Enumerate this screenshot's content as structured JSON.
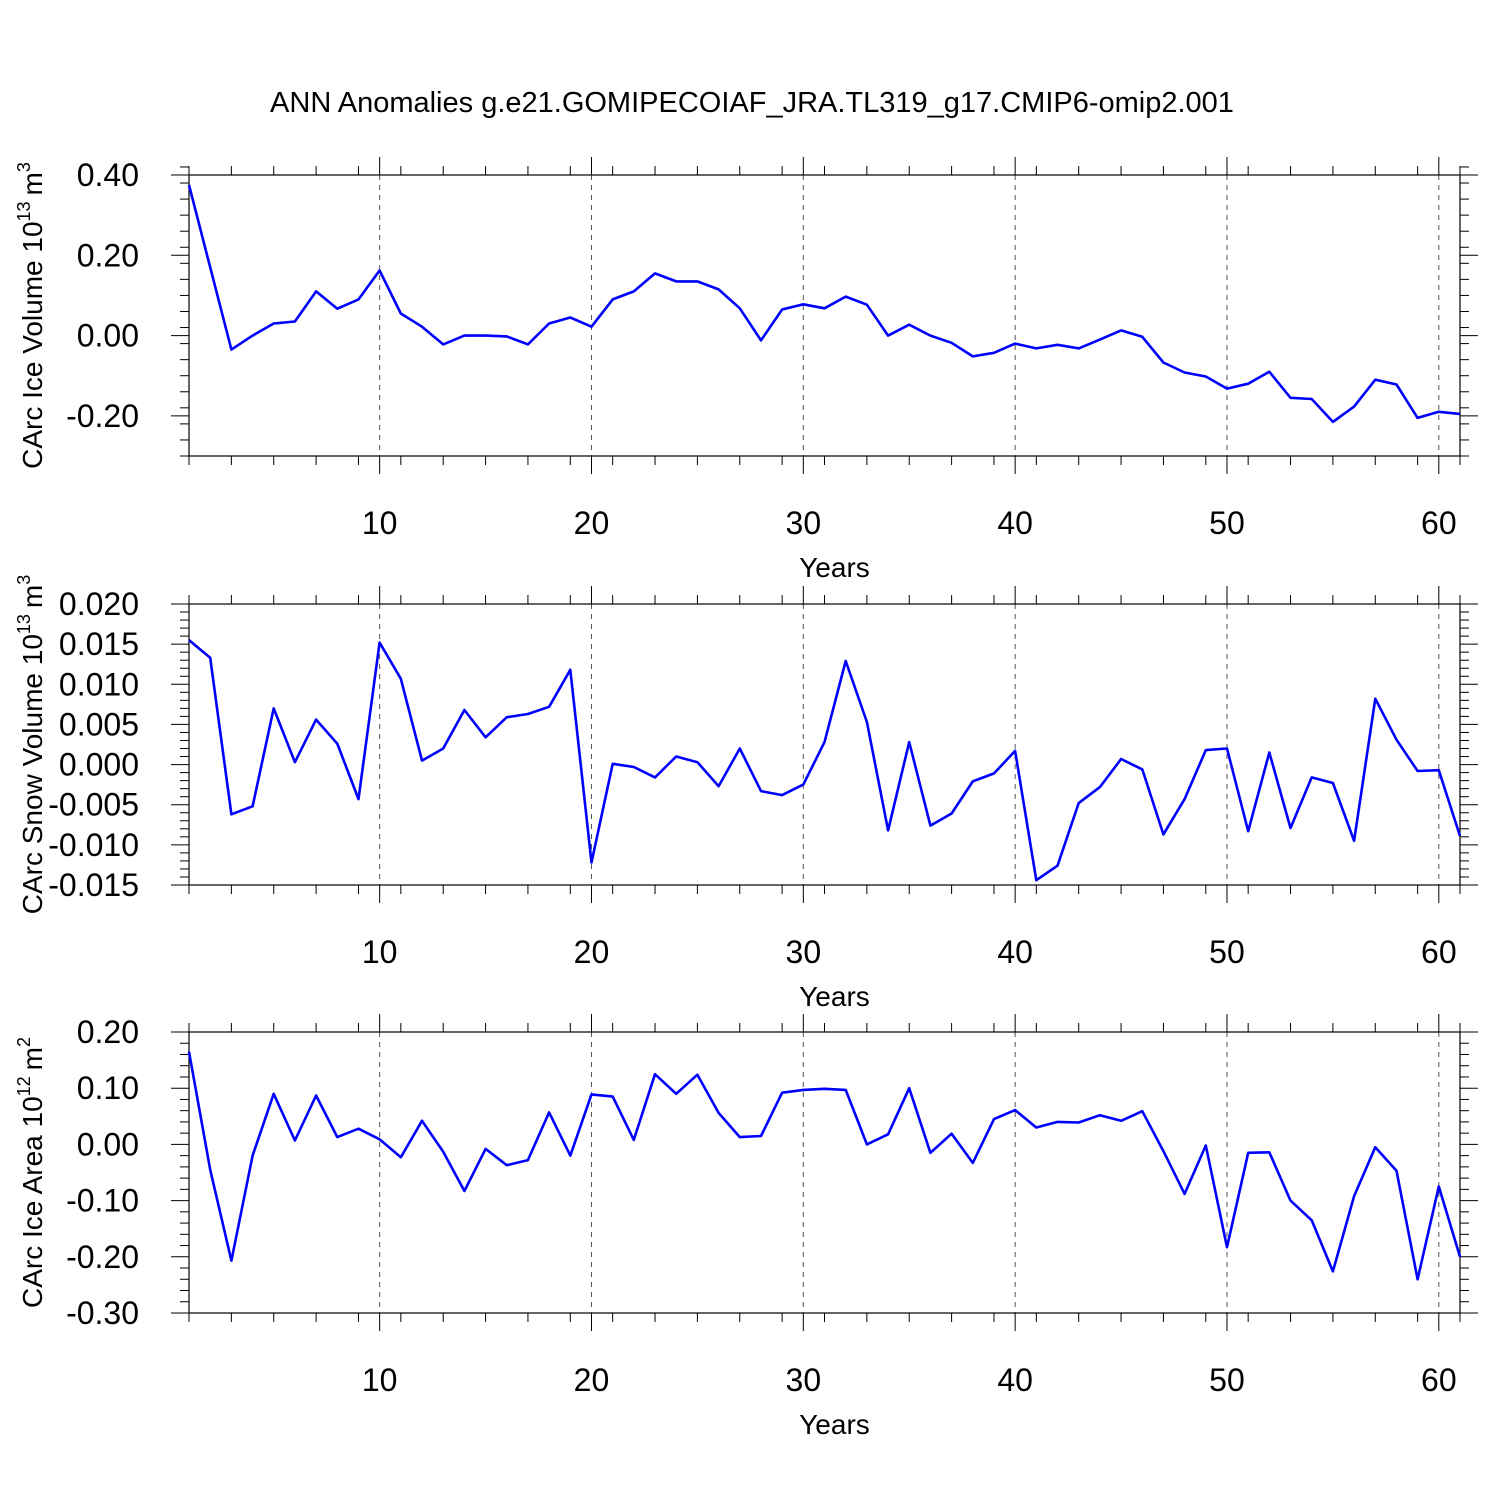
{
  "title": "ANN Anomalies g.e21.GOMIPECOIAF_JRA.TL319_g17.CMIP6-omip2.001",
  "line_color": "#0000ff",
  "chart_data": [
    {
      "type": "line",
      "ylabel_text": "CArc Ice Volume 10",
      "ylabel_exp": "13",
      "ylabel_unit": "m",
      "ylabel_unit_exp": "3",
      "xlabel": "Years",
      "xlim": [
        1,
        61
      ],
      "ylim": [
        -0.3,
        0.4
      ],
      "yticks": [
        -0.2,
        0.0,
        0.2,
        0.4
      ],
      "ytick_labels": [
        "-0.20",
        "0.00",
        "0.20",
        "0.40"
      ],
      "yminor_step": 0.04,
      "xticks": [
        10,
        20,
        30,
        40,
        50,
        60
      ],
      "xtick_labels": [
        "10",
        "20",
        "30",
        "40",
        "50",
        "60"
      ],
      "values": [
        0.375,
        0.17,
        -0.035,
        0.0,
        0.03,
        0.035,
        0.11,
        0.067,
        0.09,
        0.162,
        0.055,
        0.022,
        -0.022,
        0.0,
        0.0,
        -0.002,
        -0.022,
        0.03,
        0.045,
        0.022,
        0.09,
        0.11,
        0.155,
        0.135,
        0.135,
        0.115,
        0.068,
        -0.012,
        0.065,
        0.078,
        0.068,
        0.097,
        0.077,
        0.0,
        0.027,
        0.0,
        -0.018,
        -0.052,
        -0.043,
        -0.02,
        -0.032,
        -0.023,
        -0.032,
        -0.01,
        0.013,
        -0.003,
        -0.067,
        -0.092,
        -0.102,
        -0.132,
        -0.12,
        -0.09,
        -0.155,
        -0.158,
        -0.215,
        -0.177,
        -0.11,
        -0.122,
        -0.205,
        -0.19,
        -0.195
      ]
    },
    {
      "type": "line",
      "ylabel_text": "CArc Snow Volume 10",
      "ylabel_exp": "13",
      "ylabel_unit": "m",
      "ylabel_unit_exp": "3",
      "xlabel": "Years",
      "xlim": [
        1,
        61
      ],
      "ylim": [
        -0.015,
        0.02
      ],
      "yticks": [
        -0.015,
        -0.01,
        -0.005,
        0.0,
        0.005,
        0.01,
        0.015,
        0.02
      ],
      "ytick_labels": [
        "-0.015",
        "-0.010",
        "-0.005",
        "0.000",
        "0.005",
        "0.010",
        "0.015",
        "0.020"
      ],
      "yminor_step": 0.001,
      "xticks": [
        10,
        20,
        30,
        40,
        50,
        60
      ],
      "xtick_labels": [
        "10",
        "20",
        "30",
        "40",
        "50",
        "60"
      ],
      "values": [
        0.0155,
        0.0133,
        -0.0062,
        -0.0052,
        0.007,
        0.0003,
        0.0056,
        0.0026,
        -0.0043,
        0.0152,
        0.0107,
        0.0005,
        0.002,
        0.0068,
        0.0034,
        0.0059,
        0.0063,
        0.0072,
        0.0118,
        -0.0122,
        0.0001,
        -0.0003,
        -0.0016,
        0.001,
        0.0003,
        -0.0027,
        0.002,
        -0.0033,
        -0.0038,
        -0.0025,
        0.0028,
        0.0129,
        0.0053,
        -0.0082,
        0.0028,
        -0.0076,
        -0.0061,
        -0.0021,
        -0.0011,
        0.0017,
        -0.0144,
        -0.0126,
        -0.0048,
        -0.0028,
        0.0007,
        -0.0006,
        -0.0087,
        -0.0043,
        0.0018,
        0.002,
        -0.0083,
        0.0015,
        -0.0079,
        -0.0016,
        -0.0023,
        -0.0095,
        0.0082,
        0.0031,
        -0.0008,
        -0.0007,
        -0.0089
      ]
    },
    {
      "type": "line",
      "ylabel_text": "CArc Ice Area 10",
      "ylabel_exp": "12",
      "ylabel_unit": "m",
      "ylabel_unit_exp": "2",
      "xlabel": "Years",
      "xlim": [
        1,
        61
      ],
      "ylim": [
        -0.3,
        0.2
      ],
      "yticks": [
        -0.3,
        -0.2,
        -0.1,
        0.0,
        0.1,
        0.2
      ],
      "ytick_labels": [
        "-0.30",
        "-0.20",
        "-0.10",
        "0.00",
        "0.10",
        "0.20"
      ],
      "yminor_step": 0.02,
      "xticks": [
        10,
        20,
        30,
        40,
        50,
        60
      ],
      "xtick_labels": [
        "10",
        "20",
        "30",
        "40",
        "50",
        "60"
      ],
      "values": [
        0.165,
        -0.045,
        -0.207,
        -0.02,
        0.09,
        0.007,
        0.087,
        0.013,
        0.028,
        0.009,
        -0.023,
        0.042,
        -0.013,
        -0.083,
        -0.008,
        -0.037,
        -0.028,
        0.057,
        -0.02,
        0.089,
        0.085,
        0.008,
        0.125,
        0.09,
        0.124,
        0.056,
        0.013,
        0.015,
        0.092,
        0.097,
        0.099,
        0.097,
        0.0,
        0.018,
        0.1,
        -0.015,
        0.019,
        -0.033,
        0.045,
        0.061,
        0.03,
        0.04,
        0.039,
        0.052,
        0.042,
        0.059,
        -0.012,
        -0.088,
        -0.002,
        -0.183,
        -0.015,
        -0.014,
        -0.1,
        -0.135,
        -0.226,
        -0.092,
        -0.005,
        -0.047,
        -0.24,
        -0.075,
        -0.2
      ]
    }
  ]
}
